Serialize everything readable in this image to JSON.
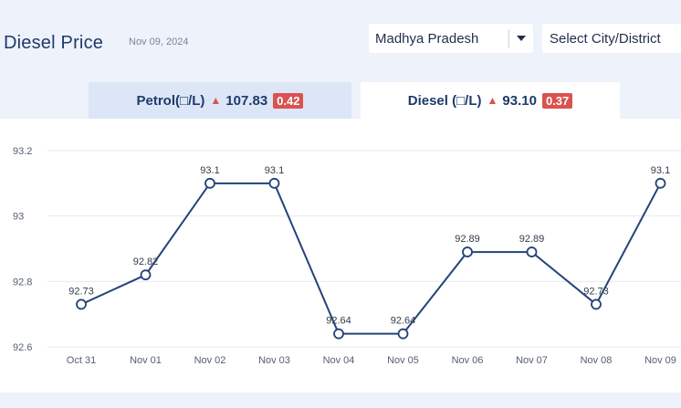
{
  "header": {
    "title": "Diesel Price",
    "date": "Nov 09, 2024",
    "state_select": "Madhya Pradesh",
    "city_select": "Select City/District"
  },
  "tabs": {
    "petrol": {
      "label": "Petrol(□/L)",
      "price": "107.83",
      "change": "0.42"
    },
    "diesel": {
      "label": "Diesel (□/L)",
      "price": "93.10",
      "change": "0.37"
    }
  },
  "colors": {
    "line": "#23437a",
    "change_badge": "#d9534f",
    "active_tab": "#ffffff",
    "inactive_tab": "#dde6f6"
  },
  "chart_data": {
    "type": "line",
    "categories": [
      "Oct 31",
      "Nov 01",
      "Nov 02",
      "Nov 03",
      "Nov 04",
      "Nov 05",
      "Nov 06",
      "Nov 07",
      "Nov 08",
      "Nov 09"
    ],
    "values": [
      92.73,
      92.82,
      93.1,
      93.1,
      92.64,
      92.64,
      92.89,
      92.89,
      92.73,
      93.1
    ],
    "data_labels": [
      "92.73",
      "92.82",
      "93.1",
      "93.1",
      "92.64",
      "92.64",
      "92.89",
      "92.89",
      "92.73",
      "93.1"
    ],
    "y_ticks": [
      "93.2",
      "93",
      "92.8",
      "92.6"
    ],
    "y_tick_values": [
      93.2,
      93.0,
      92.8,
      92.6
    ],
    "ylim": [
      92.6,
      93.2
    ],
    "grid": true
  }
}
